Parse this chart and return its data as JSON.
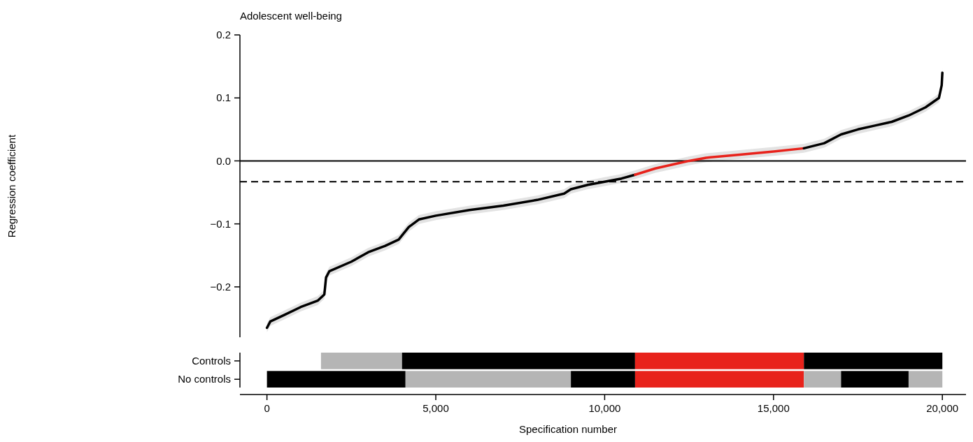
{
  "chart_data": [
    {
      "type": "line",
      "title": "Adolescent well-being",
      "ylabel": "Regression coefficient",
      "xlim": [
        -800,
        20700
      ],
      "ylim": [
        -0.28,
        0.2
      ],
      "yticks": [
        {
          "value": -0.2,
          "label": "−0.2"
        },
        {
          "value": -0.1,
          "label": "−0.1"
        },
        {
          "value": 0,
          "label": "0.0"
        },
        {
          "value": 0.1,
          "label": "0.1"
        },
        {
          "value": 0.2,
          "label": "0.2"
        }
      ],
      "tick_labels": "y",
      "grid": false,
      "line_style": "solid",
      "marker": "none",
      "ref_lines": [
        {
          "axis": "y",
          "value": 0,
          "color": "#000000",
          "line_style": "solid"
        },
        {
          "axis": "y",
          "value": -0.033,
          "color": "#000000",
          "line_style": "dashed"
        }
      ],
      "series": [
        {
          "color": "#000000",
          "x": [
            0,
            100,
            500,
            1000,
            1500,
            1700,
            1750,
            1850,
            2500,
            3000,
            3500,
            3900,
            4200,
            4500,
            5000,
            6000,
            7000,
            8000,
            8800,
            9000,
            9500,
            10000,
            10500,
            10900
          ],
          "values": [
            -0.265,
            -0.255,
            -0.245,
            -0.232,
            -0.222,
            -0.212,
            -0.185,
            -0.175,
            -0.16,
            -0.145,
            -0.135,
            -0.125,
            -0.105,
            -0.093,
            -0.087,
            -0.078,
            -0.071,
            -0.062,
            -0.052,
            -0.045,
            -0.038,
            -0.033,
            -0.028,
            -0.022
          ],
          "lower": [
            -0.272,
            -0.262,
            -0.252,
            -0.239,
            -0.229,
            -0.219,
            -0.192,
            -0.182,
            -0.167,
            -0.152,
            -0.142,
            -0.132,
            -0.112,
            -0.1,
            -0.094,
            -0.085,
            -0.078,
            -0.069,
            -0.059,
            -0.052,
            -0.045,
            -0.04,
            -0.035,
            -0.029
          ],
          "upper": [
            -0.258,
            -0.248,
            -0.238,
            -0.225,
            -0.215,
            -0.205,
            -0.178,
            -0.168,
            -0.153,
            -0.138,
            -0.128,
            -0.118,
            -0.098,
            -0.086,
            -0.08,
            -0.071,
            -0.064,
            -0.055,
            -0.045,
            -0.038,
            -0.031,
            -0.026,
            -0.021,
            -0.015
          ]
        },
        {
          "color": "#e8221b",
          "x": [
            10900,
            11500,
            12000,
            12500,
            13000,
            14000,
            15000,
            15900
          ],
          "values": [
            -0.022,
            -0.012,
            -0.006,
            0,
            0.005,
            0.01,
            0.015,
            0.02
          ],
          "lower": [
            -0.029,
            -0.019,
            -0.013,
            -0.007,
            -0.002,
            0.003,
            0.008,
            0.013
          ],
          "upper": [
            -0.015,
            -0.005,
            0.001,
            0.007,
            0.012,
            0.017,
            0.022,
            0.027
          ]
        },
        {
          "color": "#000000",
          "x": [
            15900,
            16500,
            17000,
            17500,
            18000,
            18500,
            19000,
            19500,
            19900,
            19980,
            20000
          ],
          "values": [
            0.02,
            0.028,
            0.042,
            0.05,
            0.056,
            0.062,
            0.072,
            0.085,
            0.1,
            0.12,
            0.14
          ],
          "lower": [
            0.013,
            0.021,
            0.035,
            0.043,
            0.049,
            0.055,
            0.065,
            0.078,
            0.093,
            0.113,
            0.133
          ],
          "upper": [
            0.027,
            0.035,
            0.049,
            0.057,
            0.063,
            0.069,
            0.079,
            0.092,
            0.107,
            0.127,
            0.147
          ]
        }
      ]
    },
    {
      "type": "bar",
      "orientation": "horizontal",
      "xlabel": "Specification number",
      "categories": [
        "Controls",
        "No controls"
      ],
      "xlim": [
        -800,
        20700
      ],
      "xticks": [
        {
          "value": 0,
          "label": "0"
        },
        {
          "value": 5000,
          "label": "5,000"
        },
        {
          "value": 10000,
          "label": "10,000"
        },
        {
          "value": 15000,
          "label": "15,000"
        },
        {
          "value": 20000,
          "label": "20,000"
        }
      ],
      "grid": false,
      "series": [
        {
          "color": "#b5b5b5",
          "base": [
            1600,
            4100
          ],
          "values": [
            2400,
            4900
          ]
        },
        {
          "color": "#000000",
          "base": [
            4000,
            0
          ],
          "values": [
            6900,
            4100
          ]
        },
        {
          "color": "#e8221b",
          "base": [
            10900,
            10900
          ],
          "values": [
            5000,
            5000
          ]
        },
        {
          "color": "#000000",
          "base": [
            15900,
            9000
          ],
          "values": [
            4100,
            1900
          ]
        },
        {
          "color": "#b5b5b5",
          "base": [
            null,
            15900
          ],
          "values": [
            null,
            1100
          ]
        },
        {
          "color": "#000000",
          "base": [
            null,
            17000
          ],
          "values": [
            null,
            2000
          ]
        },
        {
          "color": "#b5b5b5",
          "base": [
            null,
            19000
          ],
          "values": [
            null,
            1000
          ]
        }
      ]
    }
  ]
}
